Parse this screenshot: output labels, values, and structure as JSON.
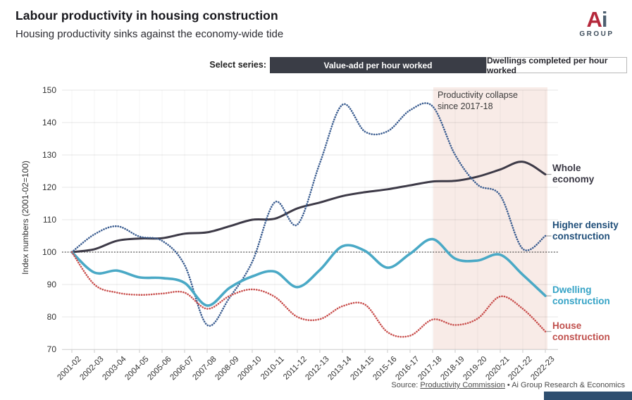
{
  "header": {
    "title": "Labour productivity in housing construction",
    "subtitle": "Housing productivity sinks against the economy-wide tide",
    "logo": {
      "a": "A",
      "i": "i",
      "group": "GROUP"
    }
  },
  "selector": {
    "label": "Select series:",
    "options": [
      {
        "label": "Value-add per hour worked",
        "selected": true
      },
      {
        "label": "Dwellings completed per hour worked",
        "selected": false
      }
    ]
  },
  "chart_data": {
    "type": "line",
    "title": "Labour productivity in housing construction",
    "ylabel": "Index numbers (2001-02=100)",
    "ylim": [
      70,
      150
    ],
    "yticks": [
      70,
      80,
      90,
      100,
      110,
      120,
      130,
      140,
      150
    ],
    "grid": true,
    "legend_position": "right",
    "reference_line": 100,
    "x_categories": [
      "2001-02",
      "2002-03",
      "2003-04",
      "2004-05",
      "2005-06",
      "2006-07",
      "2007-08",
      "2008-09",
      "2009-10",
      "2010-11",
      "2011-12",
      "2012-13",
      "2013-14",
      "2014-15",
      "2015-16",
      "2016-17",
      "2017-18",
      "2018-19",
      "2019-20",
      "2020-21",
      "2021-22",
      "2022-23"
    ],
    "shaded_region": {
      "from": "2017-18",
      "to": "2022-23",
      "color": "#f8ebe7",
      "annotation": [
        "Productivity collapse",
        "since 2017-18"
      ]
    },
    "series": [
      {
        "name": "Whole economy",
        "style": "solid",
        "color": "#3d3a47",
        "label_color": "#3a3844",
        "values": [
          100,
          100.9,
          103.5,
          104.2,
          104.3,
          105.7,
          106.1,
          108,
          110,
          110.3,
          113.5,
          115.3,
          117.3,
          118.5,
          119.4,
          120.6,
          121.8,
          122,
          123.3,
          125.5,
          127.9,
          124
        ]
      },
      {
        "name": "Higher density construction",
        "style": "dotted",
        "color": "#3c5e91",
        "label_color": "#1f4e79",
        "values": [
          100,
          105.5,
          108,
          104.8,
          103.5,
          96,
          77.5,
          86,
          97,
          115.4,
          108.5,
          127.5,
          145.5,
          137.2,
          137.3,
          143.8,
          145,
          130,
          120.8,
          117.5,
          101,
          105
        ]
      },
      {
        "name": "Dwelling construction",
        "style": "solid",
        "color": "#4aa9c6",
        "label_color": "#35a3c6",
        "values": [
          100,
          93.7,
          94.3,
          92.2,
          92,
          90.5,
          83.5,
          89,
          92.5,
          94,
          89.2,
          94.5,
          101.8,
          100.4,
          95.2,
          99.5,
          104,
          98,
          97.4,
          99.2,
          93,
          86.5
        ]
      },
      {
        "name": "House construction",
        "style": "dotted",
        "color": "#c9504e",
        "label_color": "#c0504d",
        "values": [
          100,
          90,
          87.5,
          86.8,
          87.2,
          87.5,
          82.5,
          86.5,
          88.5,
          86.2,
          80,
          79.3,
          83.3,
          83.8,
          75.3,
          74.2,
          79.2,
          77.5,
          79.5,
          86.3,
          82.5,
          75.5
        ]
      }
    ]
  },
  "footer": {
    "source_prefix": "Source:",
    "source_link": "Productivity Commission",
    "separator": "•",
    "source_suffix": "Ai Group Research & Economics"
  }
}
